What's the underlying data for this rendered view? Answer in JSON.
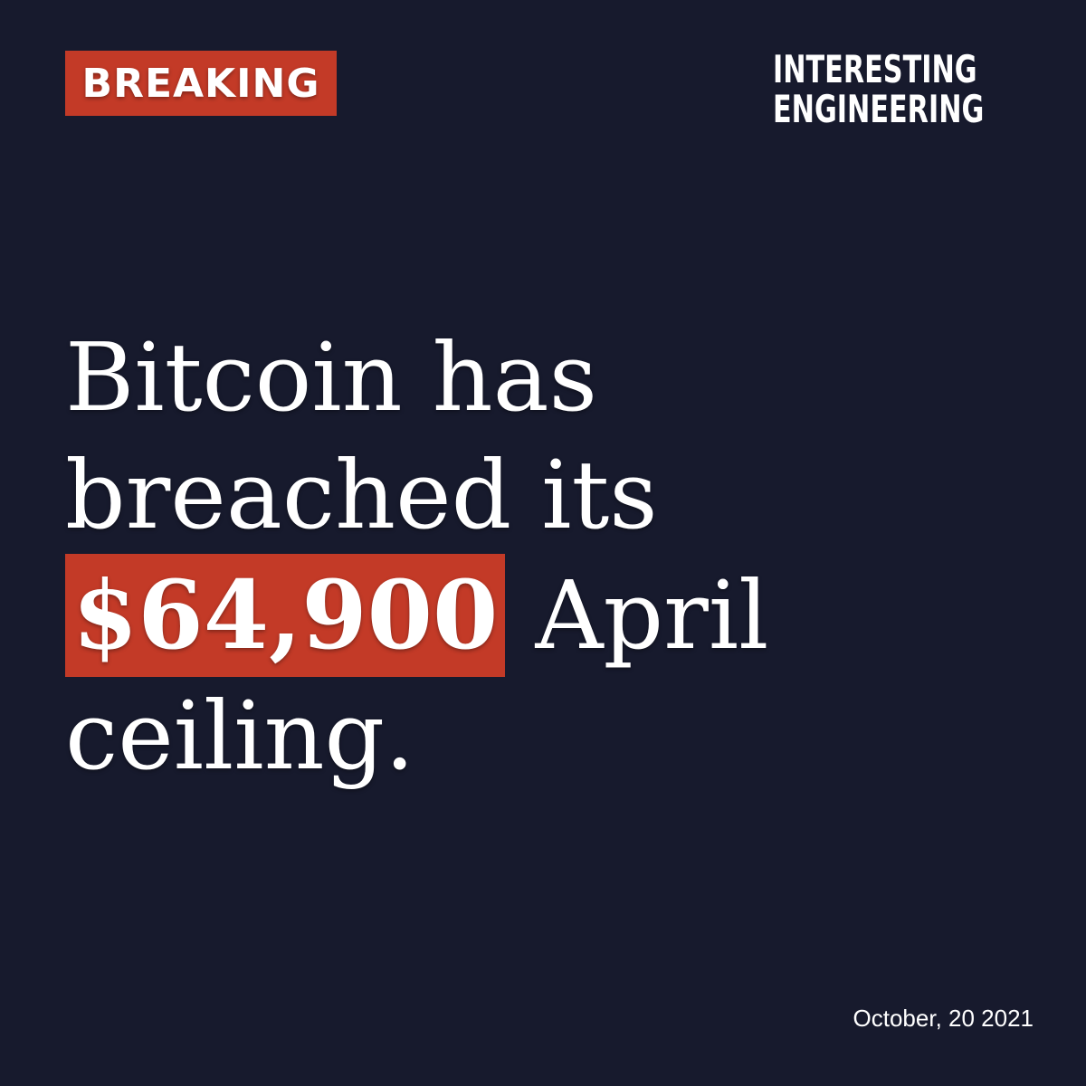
{
  "badge": {
    "label": "BREAKING",
    "color": "#c33a27"
  },
  "brand": {
    "line1": "INTERESTING",
    "line2": "ENGINEERING"
  },
  "headline": {
    "line1": "Bitcoin has",
    "line2": "breached its",
    "highlight": "$64,900",
    "line3_rest": "April",
    "line4": "ceiling."
  },
  "date": "October, 20 2021",
  "colors": {
    "background": "#171a2d",
    "accent": "#c33a27",
    "text": "#ffffff"
  }
}
